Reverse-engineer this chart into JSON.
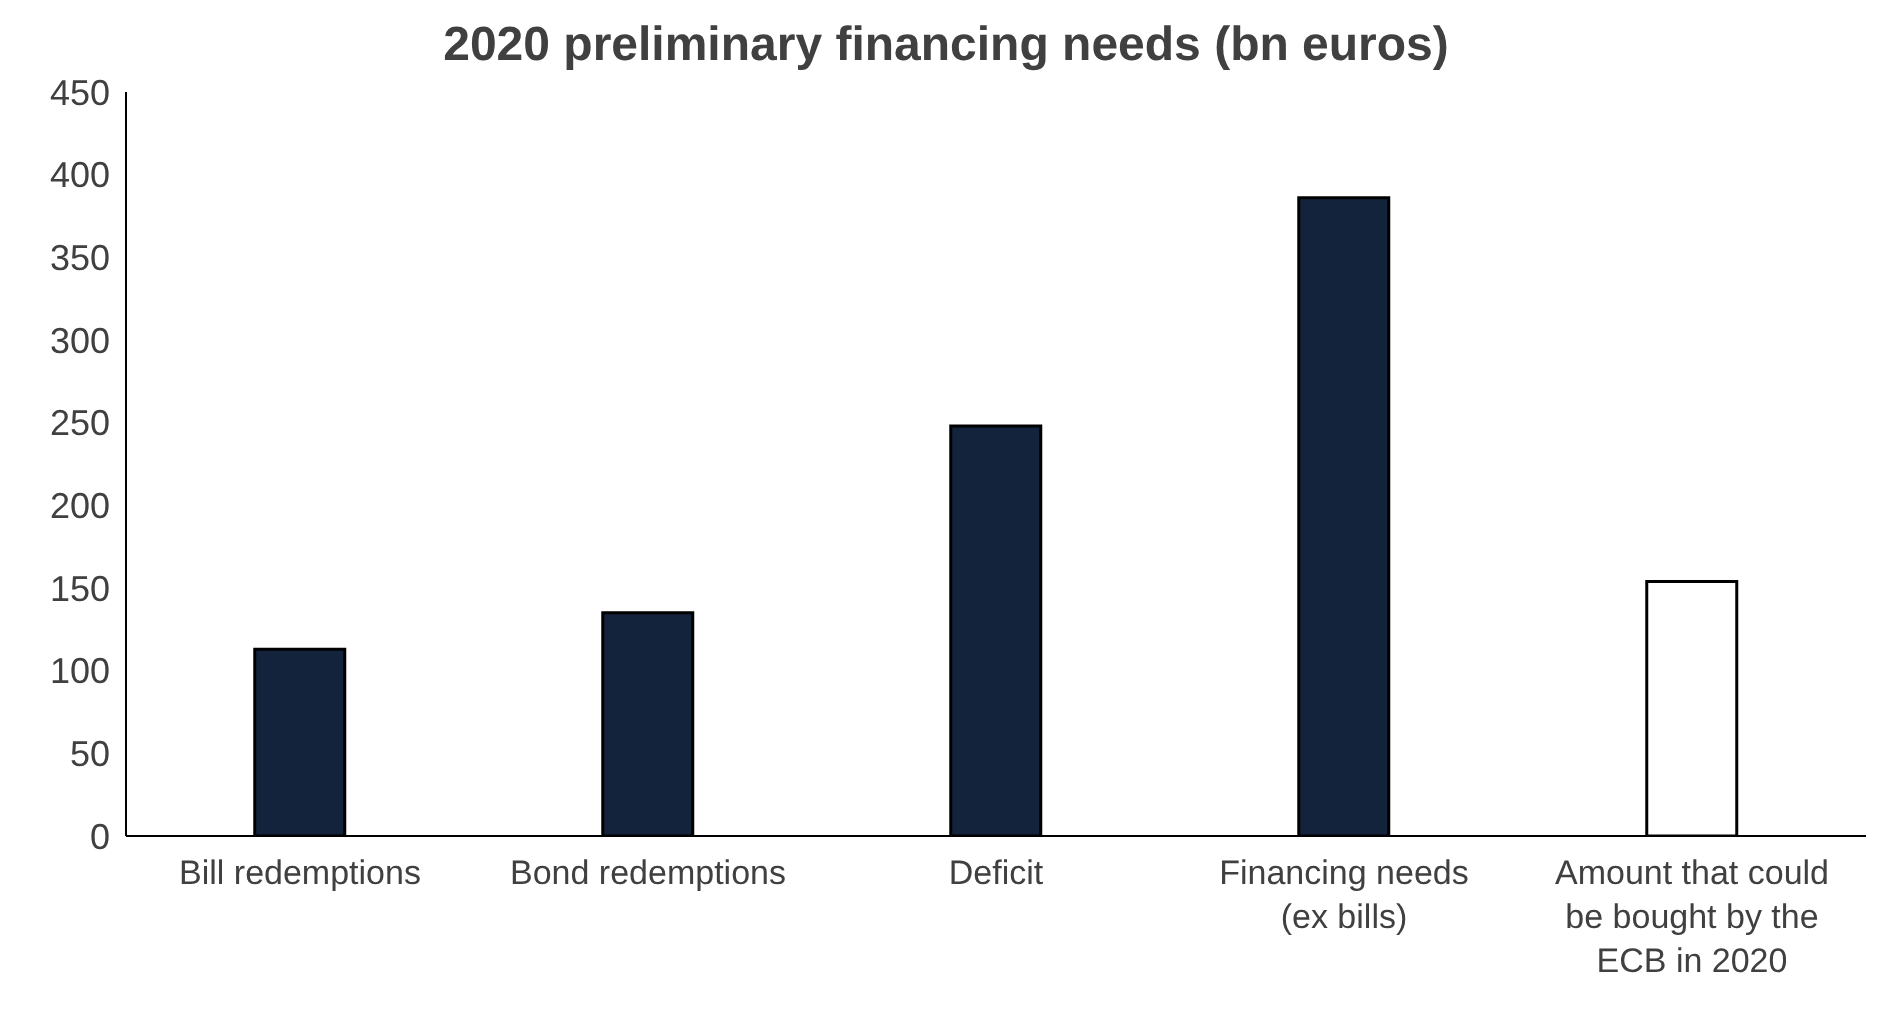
{
  "chart_data": {
    "type": "bar",
    "title": "2020 preliminary financing needs (bn euros)",
    "categories": [
      "Bill redemptions",
      "Bond redemptions",
      "Deficit",
      "Financing needs (ex bills)",
      "Amount that could be bought by the ECB in 2020"
    ],
    "values": [
      113,
      135,
      248,
      386,
      154
    ],
    "colors": [
      "#14233c",
      "#14233c",
      "#14233c",
      "#14233c",
      "#ffffff"
    ],
    "ylim": [
      0,
      450
    ],
    "yticks": [
      0,
      50,
      100,
      150,
      200,
      250,
      300,
      350,
      400,
      450
    ],
    "grid": false,
    "legend": false
  }
}
